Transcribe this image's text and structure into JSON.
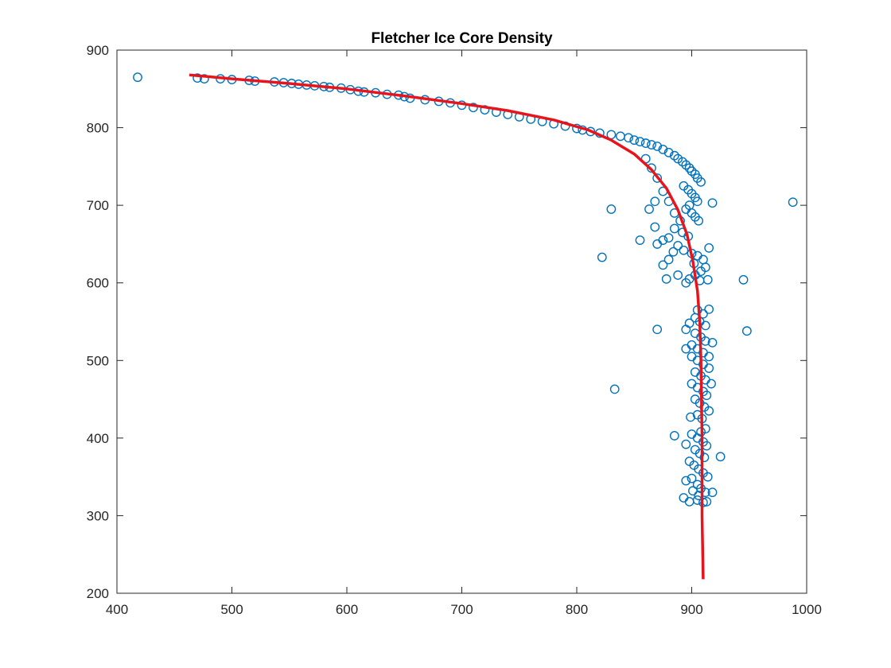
{
  "chart_data": {
    "type": "scatter",
    "title": "Fletcher Ice Core Density",
    "xlabel": "",
    "ylabel": "",
    "xlim": [
      400,
      1000
    ],
    "ylim": [
      200,
      900
    ],
    "xticks": [
      400,
      500,
      600,
      700,
      800,
      900,
      1000
    ],
    "yticks": [
      200,
      300,
      400,
      500,
      600,
      700,
      800,
      900
    ],
    "grid": false,
    "legend": "none",
    "colors": {
      "points": "#0072BD",
      "fit": "#E8141B",
      "axes": "#262626"
    },
    "series": [
      {
        "mark": "circle",
        "points": [
          [
            418,
            865
          ],
          [
            470,
            864
          ],
          [
            476,
            863
          ],
          [
            490,
            863
          ],
          [
            500,
            862
          ],
          [
            515,
            861
          ],
          [
            520,
            860
          ],
          [
            537,
            859
          ],
          [
            545,
            858
          ],
          [
            552,
            857
          ],
          [
            558,
            856
          ],
          [
            565,
            855
          ],
          [
            572,
            854
          ],
          [
            580,
            853
          ],
          [
            585,
            852
          ],
          [
            595,
            851
          ],
          [
            603,
            849
          ],
          [
            610,
            847
          ],
          [
            615,
            846
          ],
          [
            625,
            845
          ],
          [
            635,
            843
          ],
          [
            645,
            842
          ],
          [
            650,
            840
          ],
          [
            655,
            838
          ],
          [
            668,
            836
          ],
          [
            680,
            834
          ],
          [
            690,
            832
          ],
          [
            700,
            829
          ],
          [
            710,
            826
          ],
          [
            720,
            823
          ],
          [
            730,
            820
          ],
          [
            740,
            817
          ],
          [
            750,
            814
          ],
          [
            760,
            811
          ],
          [
            770,
            808
          ],
          [
            780,
            805
          ],
          [
            790,
            802
          ],
          [
            800,
            799
          ],
          [
            805,
            797
          ],
          [
            812,
            795
          ],
          [
            820,
            793
          ],
          [
            830,
            791
          ],
          [
            838,
            789
          ],
          [
            845,
            787
          ],
          [
            850,
            784
          ],
          [
            855,
            782
          ],
          [
            860,
            780
          ],
          [
            865,
            778
          ],
          [
            870,
            776
          ],
          [
            875,
            772
          ],
          [
            880,
            768
          ],
          [
            885,
            764
          ],
          [
            888,
            760
          ],
          [
            892,
            756
          ],
          [
            895,
            752
          ],
          [
            898,
            748
          ],
          [
            900,
            744
          ],
          [
            903,
            740
          ],
          [
            905,
            735
          ],
          [
            908,
            730
          ],
          [
            893,
            725
          ],
          [
            897,
            720
          ],
          [
            900,
            715
          ],
          [
            903,
            710
          ],
          [
            905,
            705
          ],
          [
            898,
            700
          ],
          [
            895,
            695
          ],
          [
            900,
            690
          ],
          [
            903,
            685
          ],
          [
            906,
            680
          ],
          [
            860,
            760
          ],
          [
            865,
            748
          ],
          [
            870,
            735
          ],
          [
            875,
            718
          ],
          [
            868,
            705
          ],
          [
            863,
            695
          ],
          [
            880,
            705
          ],
          [
            885,
            690
          ],
          [
            890,
            680
          ],
          [
            868,
            672
          ],
          [
            885,
            670
          ],
          [
            892,
            665
          ],
          [
            897,
            660
          ],
          [
            880,
            658
          ],
          [
            875,
            655
          ],
          [
            870,
            650
          ],
          [
            855,
            655
          ],
          [
            888,
            648
          ],
          [
            893,
            642
          ],
          [
            900,
            638
          ],
          [
            905,
            635
          ],
          [
            910,
            630
          ],
          [
            915,
            645
          ],
          [
            912,
            620
          ],
          [
            908,
            615
          ],
          [
            903,
            610
          ],
          [
            898,
            605
          ],
          [
            895,
            600
          ],
          [
            888,
            610
          ],
          [
            878,
            605
          ],
          [
            875,
            623
          ],
          [
            880,
            630
          ],
          [
            884,
            640
          ],
          [
            902,
            625
          ],
          [
            907,
            603
          ],
          [
            914,
            604
          ],
          [
            822,
            633
          ],
          [
            830,
            695
          ],
          [
            918,
            703
          ],
          [
            988,
            704
          ],
          [
            945,
            604
          ],
          [
            948,
            538
          ],
          [
            905,
            565
          ],
          [
            910,
            560
          ],
          [
            915,
            566
          ],
          [
            903,
            555
          ],
          [
            907,
            550
          ],
          [
            912,
            545
          ],
          [
            898,
            548
          ],
          [
            895,
            540
          ],
          [
            903,
            535
          ],
          [
            908,
            530
          ],
          [
            912,
            525
          ],
          [
            918,
            523
          ],
          [
            900,
            520
          ],
          [
            905,
            515
          ],
          [
            910,
            510
          ],
          [
            915,
            505
          ],
          [
            895,
            515
          ],
          [
            900,
            505
          ],
          [
            905,
            500
          ],
          [
            910,
            495
          ],
          [
            915,
            490
          ],
          [
            903,
            485
          ],
          [
            908,
            480
          ],
          [
            912,
            475
          ],
          [
            917,
            470
          ],
          [
            900,
            470
          ],
          [
            905,
            465
          ],
          [
            910,
            460
          ],
          [
            913,
            455
          ],
          [
            903,
            450
          ],
          [
            907,
            445
          ],
          [
            911,
            440
          ],
          [
            915,
            435
          ],
          [
            905,
            430
          ],
          [
            909,
            425
          ],
          [
            899,
            427
          ],
          [
            870,
            540
          ],
          [
            833,
            463
          ],
          [
            885,
            403
          ],
          [
            900,
            405
          ],
          [
            905,
            400
          ],
          [
            910,
            395
          ],
          [
            913,
            390
          ],
          [
            903,
            385
          ],
          [
            907,
            380
          ],
          [
            911,
            375
          ],
          [
            898,
            370
          ],
          [
            902,
            365
          ],
          [
            906,
            360
          ],
          [
            910,
            355
          ],
          [
            914,
            350
          ],
          [
            900,
            348
          ],
          [
            895,
            345
          ],
          [
            905,
            340
          ],
          [
            908,
            335
          ],
          [
            912,
            330
          ],
          [
            918,
            330
          ],
          [
            925,
            376
          ],
          [
            893,
            323
          ],
          [
            898,
            318
          ],
          [
            905,
            320
          ],
          [
            910,
            317
          ],
          [
            913,
            318
          ],
          [
            906,
            326
          ],
          [
            895,
            392
          ],
          [
            908,
            408
          ],
          [
            901,
            332
          ],
          [
            912,
            412
          ]
        ]
      },
      {
        "mark": "line",
        "points": [
          [
            463,
            868
          ],
          [
            500,
            863
          ],
          [
            550,
            857
          ],
          [
            600,
            850
          ],
          [
            650,
            841
          ],
          [
            700,
            831
          ],
          [
            740,
            822
          ],
          [
            780,
            810
          ],
          [
            810,
            797
          ],
          [
            830,
            784
          ],
          [
            850,
            766
          ],
          [
            865,
            746
          ],
          [
            878,
            722
          ],
          [
            888,
            694
          ],
          [
            896,
            662
          ],
          [
            901,
            628
          ],
          [
            905,
            590
          ],
          [
            907,
            550
          ],
          [
            908,
            500
          ],
          [
            909,
            400
          ],
          [
            909,
            300
          ],
          [
            910,
            218
          ]
        ]
      }
    ]
  }
}
